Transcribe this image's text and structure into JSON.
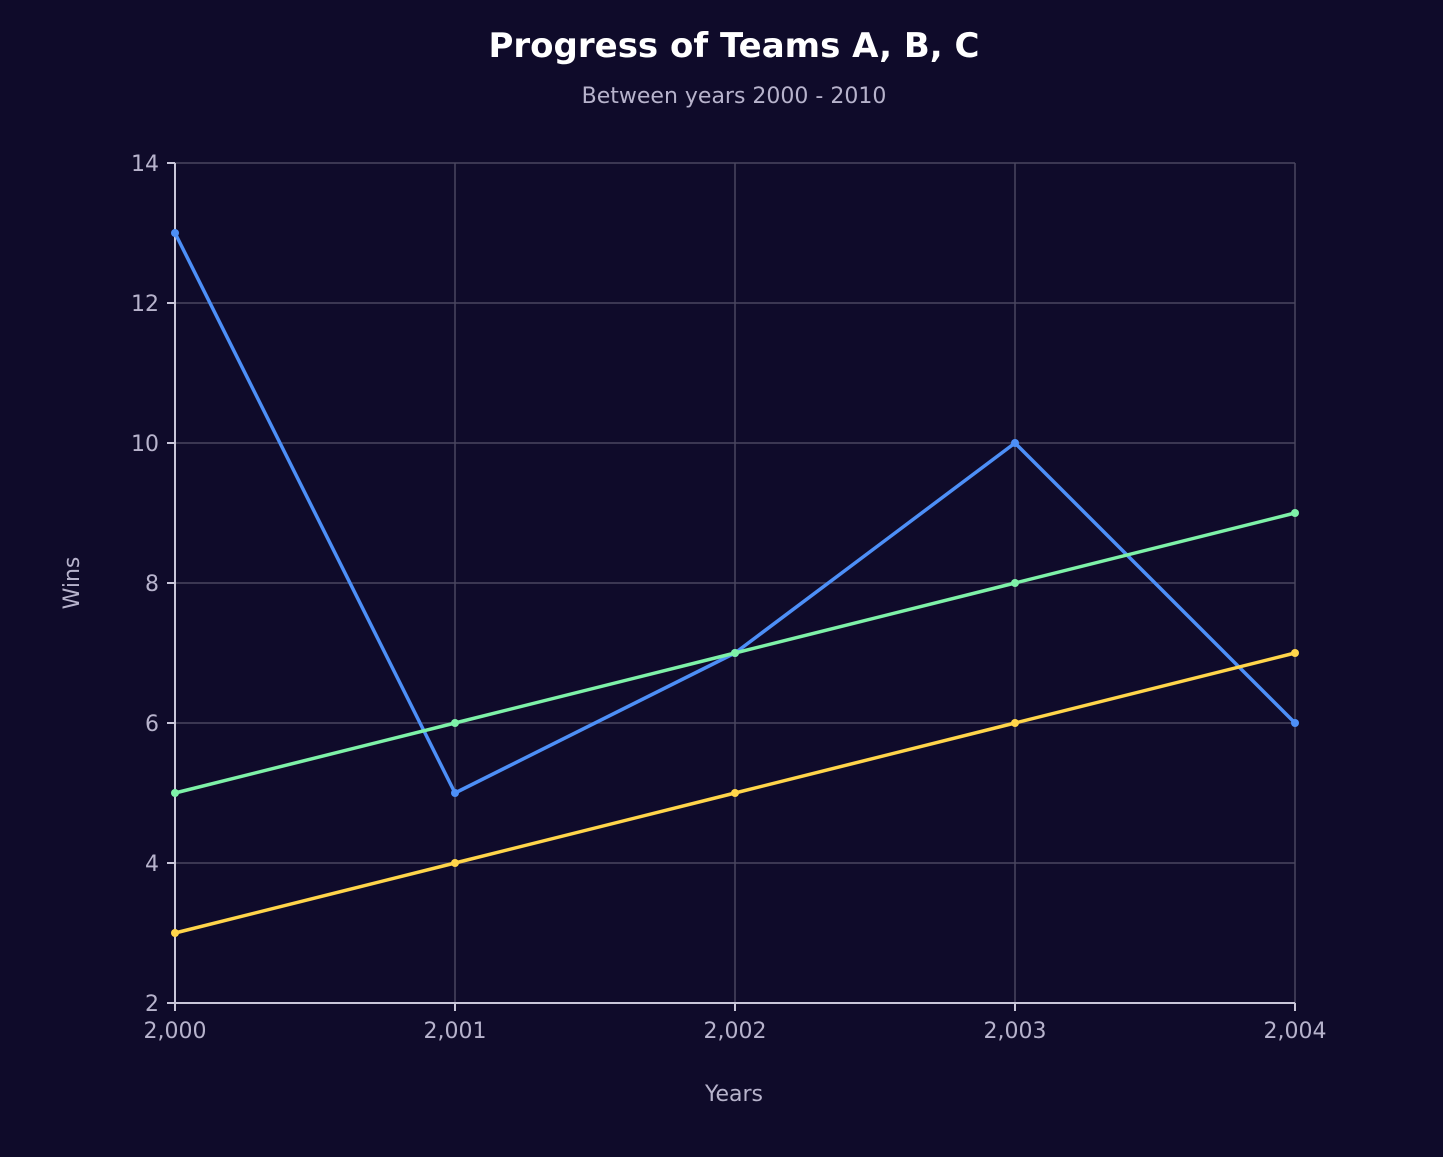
{
  "chart_data": {
    "type": "line",
    "title": "Progress of Teams A, B, C",
    "subtitle": "Between years 2000 - 2010",
    "xlabel": "Years",
    "ylabel": "Wins",
    "x": [
      2000,
      2001,
      2002,
      2003,
      2004
    ],
    "x_tick_labels": [
      "2,000",
      "2,001",
      "2,002",
      "2,003",
      "2,004"
    ],
    "y_ticks": [
      2,
      4,
      6,
      8,
      10,
      12,
      14
    ],
    "xlim": [
      2000,
      2004
    ],
    "ylim": [
      2,
      14
    ],
    "grid": true,
    "legend": "none",
    "series": [
      {
        "values": [
          13,
          5,
          7,
          10,
          6
        ],
        "color": "#4d8ff7"
      },
      {
        "values": [
          5,
          6,
          7,
          8,
          9
        ],
        "color": "#7ef2a8"
      },
      {
        "values": [
          3,
          4,
          5,
          6,
          7
        ],
        "color": "#ffd54a"
      }
    ]
  }
}
